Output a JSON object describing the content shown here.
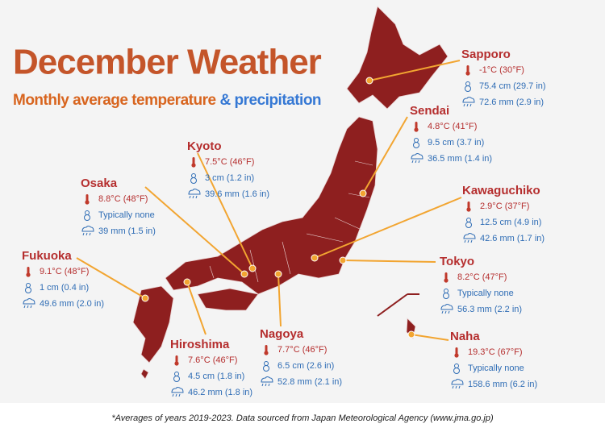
{
  "header": {
    "title": "December Weather",
    "subtitle_main": "Monthly average temperature",
    "subtitle_accent": "& precipitation"
  },
  "cities": [
    {
      "name": "Sapporo",
      "temperature": "-1°C (30°F)",
      "snow": "75.4 cm (29.7 in)",
      "rain": "72.6 mm (2.9 in)"
    },
    {
      "name": "Sendai",
      "temperature": "4.8°C (41°F)",
      "snow": "9.5 cm (3.7 in)",
      "rain": "36.5 mm (1.4 in)"
    },
    {
      "name": "Kyoto",
      "temperature": "7.5°C (46°F)",
      "snow": "3 cm (1.2 in)",
      "rain": "39.6 mm (1.6 in)"
    },
    {
      "name": "Osaka",
      "temperature": "8.8°C (48°F)",
      "snow": "Typically none",
      "rain": "39 mm (1.5 in)"
    },
    {
      "name": "Kawaguchiko",
      "temperature": "2.9°C (37°F)",
      "snow": "12.5 cm (4.9 in)",
      "rain": "42.6 mm (1.7 in)"
    },
    {
      "name": "Fukuoka",
      "temperature": "9.1°C (48°F)",
      "snow": "1 cm (0.4 in)",
      "rain": "49.6 mm (2.0 in)"
    },
    {
      "name": "Tokyo",
      "temperature": "8.2°C (47°F)",
      "snow": "Typically none",
      "rain": "56.3 mm (2.2 in)"
    },
    {
      "name": "Hiroshima",
      "temperature": "7.6°C (46°F)",
      "snow": "4.5 cm (1.8 in)",
      "rain": "46.2 mm (1.8 in)"
    },
    {
      "name": "Nagoya",
      "temperature": "7.7°C (46°F)",
      "snow": "6.5 cm (2.6 in)",
      "rain": "52.8 mm (2.1 in)"
    },
    {
      "name": "Naha",
      "temperature": "19.3°C (67°F)",
      "snow": "Typically none",
      "rain": "158.6 mm (6.2 in)"
    }
  ],
  "footnote": "*Averages of years 2019-2023. Data sourced from Japan Meteorological Agency (www.jma.go.jp)"
}
